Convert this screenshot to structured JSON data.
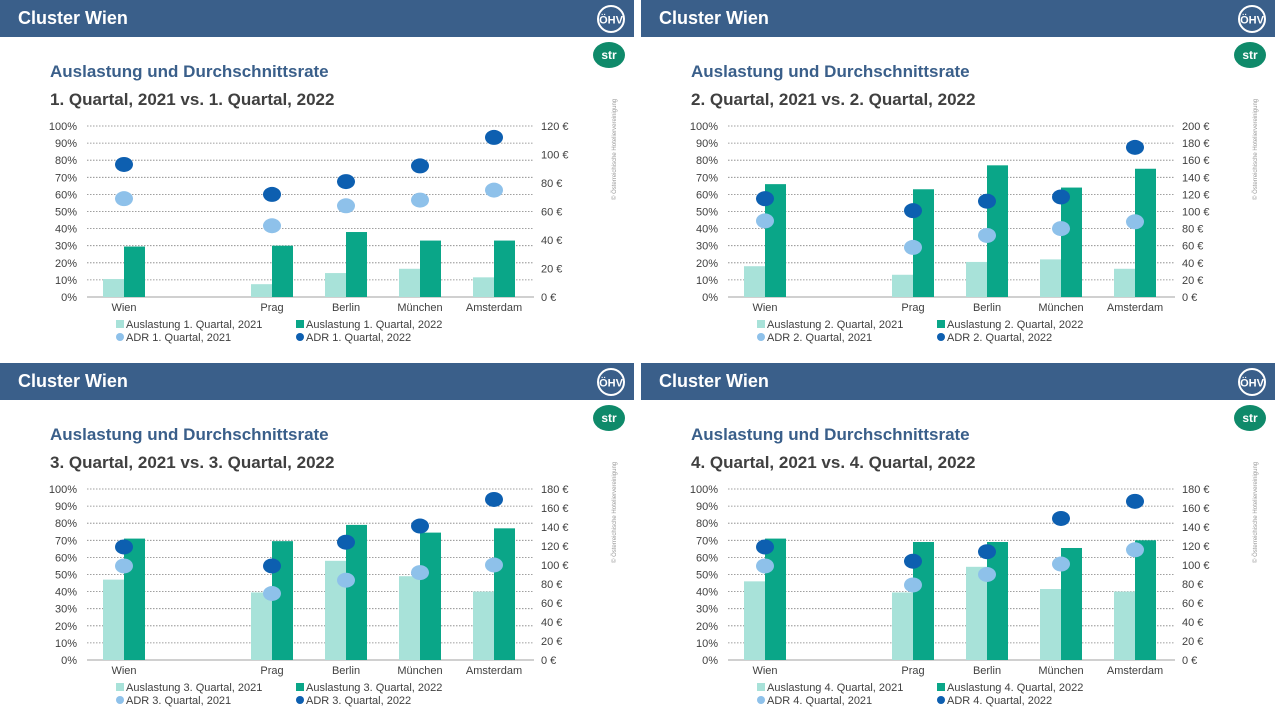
{
  "header_title": "Cluster Wien",
  "logos": {
    "left": "ÖHV",
    "right": "str"
  },
  "copyright": "© Österreichische Hoteliervereinigung",
  "colors": {
    "header": "#3a5f8a",
    "occ_2021": "#a8e2d9",
    "occ_2022": "#0aa688",
    "adr_2021": "#8ec1ea",
    "adr_2022": "#0d5fb0"
  },
  "panels": [
    {
      "title": "Auslastung und Durchschnittsrate",
      "subtitle": "1. Quartal, 2021 vs. 1. Quartal, 2022",
      "chart_data": {
        "type": "bar",
        "categories": [
          "Wien",
          "Prag",
          "Berlin",
          "München",
          "Amsterdam"
        ],
        "y_ticks": [
          "100%",
          "90%",
          "80%",
          "70%",
          "60%",
          "50%",
          "40%",
          "30%",
          "20%",
          "10%",
          "0%"
        ],
        "y2_ticks": [
          "120 €",
          "100 €",
          "80 €",
          "60 €",
          "40 €",
          "20 €",
          "0 €"
        ],
        "ylim": [
          0,
          100
        ],
        "y2lim": [
          0,
          120
        ],
        "series": [
          {
            "name": "Auslastung 1. Quartal, 2021",
            "type": "bar",
            "axis": "left",
            "values": [
              10.5,
              7.5,
              14,
              16.5,
              11.5
            ]
          },
          {
            "name": "Auslastung 1. Quartal, 2022",
            "type": "bar",
            "axis": "left",
            "values": [
              29.5,
              30,
              38,
              33,
              33
            ]
          },
          {
            "name": "ADR 1. Quartal, 2021",
            "type": "scatter",
            "axis": "right",
            "values": [
              69,
              50,
              64,
              68,
              75
            ]
          },
          {
            "name": "ADR 1. Quartal, 2022",
            "type": "scatter",
            "axis": "right",
            "values": [
              93,
              72,
              81,
              92,
              112
            ]
          }
        ],
        "grid": true,
        "legend_position": "bottom"
      }
    },
    {
      "title": "Auslastung und Durchschnittsrate",
      "subtitle": "2. Quartal, 2021 vs. 2. Quartal, 2022",
      "chart_data": {
        "type": "bar",
        "categories": [
          "Wien",
          "Prag",
          "Berlin",
          "München",
          "Amsterdam"
        ],
        "y_ticks": [
          "100%",
          "90%",
          "80%",
          "70%",
          "60%",
          "50%",
          "40%",
          "30%",
          "20%",
          "10%",
          "0%"
        ],
        "y2_ticks": [
          "200 €",
          "180 €",
          "160 €",
          "140 €",
          "120 €",
          "100 €",
          "80 €",
          "60 €",
          "40 €",
          "20 €",
          "0 €"
        ],
        "ylim": [
          0,
          100
        ],
        "y2lim": [
          0,
          200
        ],
        "series": [
          {
            "name": "Auslastung 2. Quartal, 2021",
            "type": "bar",
            "axis": "left",
            "values": [
              18,
              13,
              20.5,
              22,
              16.5
            ]
          },
          {
            "name": "Auslastung 2. Quartal, 2022",
            "type": "bar",
            "axis": "left",
            "values": [
              66,
              63,
              77,
              64,
              75
            ]
          },
          {
            "name": "ADR 2. Quartal, 2021",
            "type": "scatter",
            "axis": "right",
            "values": [
              89,
              58,
              72,
              80,
              88
            ]
          },
          {
            "name": "ADR 2. Quartal, 2022",
            "type": "scatter",
            "axis": "right",
            "values": [
              115,
              101,
              112,
              117,
              175
            ]
          }
        ],
        "grid": true,
        "legend_position": "bottom"
      }
    },
    {
      "title": "Auslastung und Durchschnittsrate",
      "subtitle": "3. Quartal, 2021 vs. 3. Quartal, 2022",
      "chart_data": {
        "type": "bar",
        "categories": [
          "Wien",
          "Prag",
          "Berlin",
          "München",
          "Amsterdam"
        ],
        "y_ticks": [
          "100%",
          "90%",
          "80%",
          "70%",
          "60%",
          "50%",
          "40%",
          "30%",
          "20%",
          "10%",
          "0%"
        ],
        "y2_ticks": [
          "180 €",
          "160 €",
          "140 €",
          "120 €",
          "100 €",
          "80 €",
          "60 €",
          "40 €",
          "20 €",
          "0 €"
        ],
        "ylim": [
          0,
          100
        ],
        "y2lim": [
          0,
          180
        ],
        "series": [
          {
            "name": "Auslastung 3. Quartal, 2021",
            "type": "bar",
            "axis": "left",
            "values": [
              47,
              39.5,
              58,
              49,
              40
            ]
          },
          {
            "name": "Auslastung 3. Quartal, 2022",
            "type": "bar",
            "axis": "left",
            "values": [
              71,
              69.5,
              79,
              74.5,
              77
            ]
          },
          {
            "name": "ADR 3. Quartal, 2021",
            "type": "scatter",
            "axis": "right",
            "values": [
              99,
              70,
              84,
              92,
              100
            ]
          },
          {
            "name": "ADR 3. Quartal, 2022",
            "type": "scatter",
            "axis": "right",
            "values": [
              119,
              99,
              124,
              141,
              169
            ]
          }
        ],
        "grid": true,
        "legend_position": "bottom"
      }
    },
    {
      "title": "Auslastung und Durchschnittsrate",
      "subtitle": "4. Quartal, 2021 vs. 4. Quartal, 2022",
      "chart_data": {
        "type": "bar",
        "categories": [
          "Wien",
          "Prag",
          "Berlin",
          "München",
          "Amsterdam"
        ],
        "y_ticks": [
          "100%",
          "90%",
          "80%",
          "70%",
          "60%",
          "50%",
          "40%",
          "30%",
          "20%",
          "10%",
          "0%"
        ],
        "y2_ticks": [
          "180 €",
          "160 €",
          "140 €",
          "120 €",
          "100 €",
          "80 €",
          "60 €",
          "40 €",
          "20 €",
          "0 €"
        ],
        "ylim": [
          0,
          100
        ],
        "y2lim": [
          0,
          180
        ],
        "series": [
          {
            "name": "Auslastung 4. Quartal, 2021",
            "type": "bar",
            "axis": "left",
            "values": [
              46,
              39.5,
              54.5,
              41.5,
              40
            ]
          },
          {
            "name": "Auslastung 4. Quartal, 2022",
            "type": "bar",
            "axis": "left",
            "values": [
              71,
              69,
              69,
              65.5,
              70
            ]
          },
          {
            "name": "ADR 4. Quartal, 2021",
            "type": "scatter",
            "axis": "right",
            "values": [
              99,
              79,
              90,
              101,
              116
            ]
          },
          {
            "name": "ADR 4. Quartal, 2022",
            "type": "scatter",
            "axis": "right",
            "values": [
              119,
              104,
              114,
              149,
              167
            ]
          }
        ],
        "grid": true,
        "legend_position": "bottom"
      }
    }
  ]
}
